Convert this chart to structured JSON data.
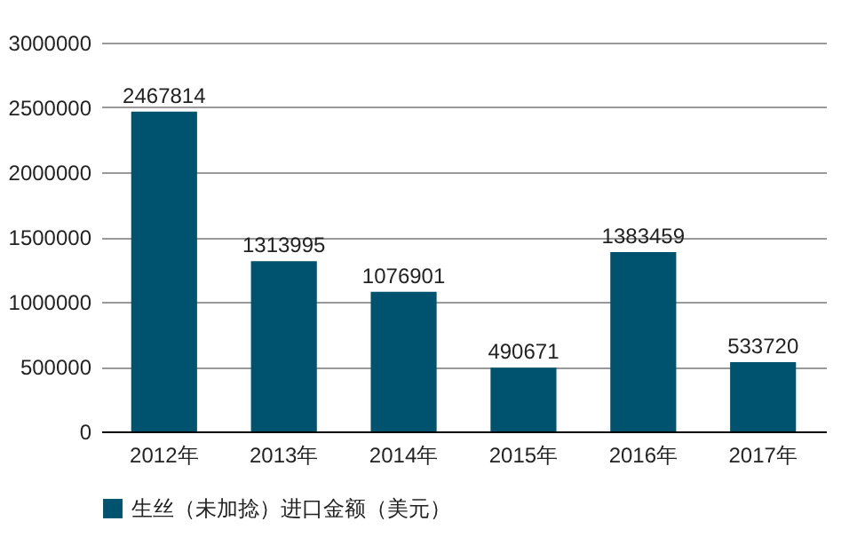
{
  "chart_data": {
    "type": "bar",
    "categories": [
      "2012年",
      "2013年",
      "2014年",
      "2015年",
      "2016年",
      "2017年"
    ],
    "series": [
      {
        "name": "生丝（未加捻）进口金额（美元）",
        "color": "#00536e",
        "values": [
          2467814,
          1313995,
          1076901,
          490671,
          1383459,
          533720
        ]
      }
    ],
    "ylim": [
      0,
      3000000
    ],
    "yticks": [
      0,
      500000,
      1000000,
      1500000,
      2000000,
      2500000,
      3000000
    ],
    "grid": "y",
    "legend": "bottom",
    "data_labels": true
  }
}
